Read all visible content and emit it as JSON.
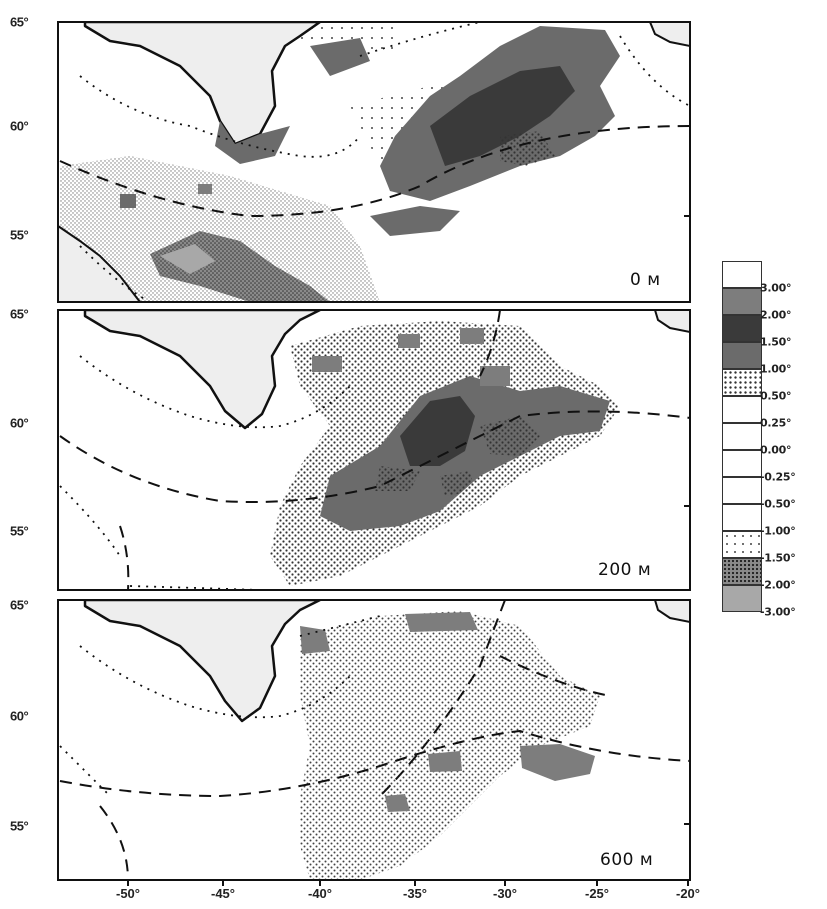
{
  "latitude_labels": [
    "65°",
    "60°",
    "55°"
  ],
  "longitude_labels": [
    "-50°",
    "-45°",
    "-40°",
    "-35°",
    "-30°",
    "-25°",
    "-20°"
  ],
  "panels": [
    {
      "depth_label": "0 м"
    },
    {
      "depth_label": "200 м"
    },
    {
      "depth_label": "600 м"
    }
  ],
  "legend": {
    "labels": [
      "3.00°",
      "2.00°",
      "1.50°",
      "1.00°",
      "0.50°",
      "0.25°",
      "0.00°",
      "-0.25°",
      "-0.50°",
      "-1.00°",
      "-1.50°",
      "-2.00°",
      "-3.00°"
    ],
    "classes": [
      "white",
      "gray2",
      "dark",
      "gray1",
      "dots",
      "white",
      "white",
      "white",
      "white",
      "white",
      "sparse",
      "cross",
      "lightgray"
    ]
  },
  "colors": {
    "land": "#eeeeee",
    "coastline": "#111111",
    "dark": "#3a3a3a",
    "gray1": "#6b6b6b",
    "gray2": "#7d7d7d",
    "lightgray": "#a8a8a8"
  }
}
